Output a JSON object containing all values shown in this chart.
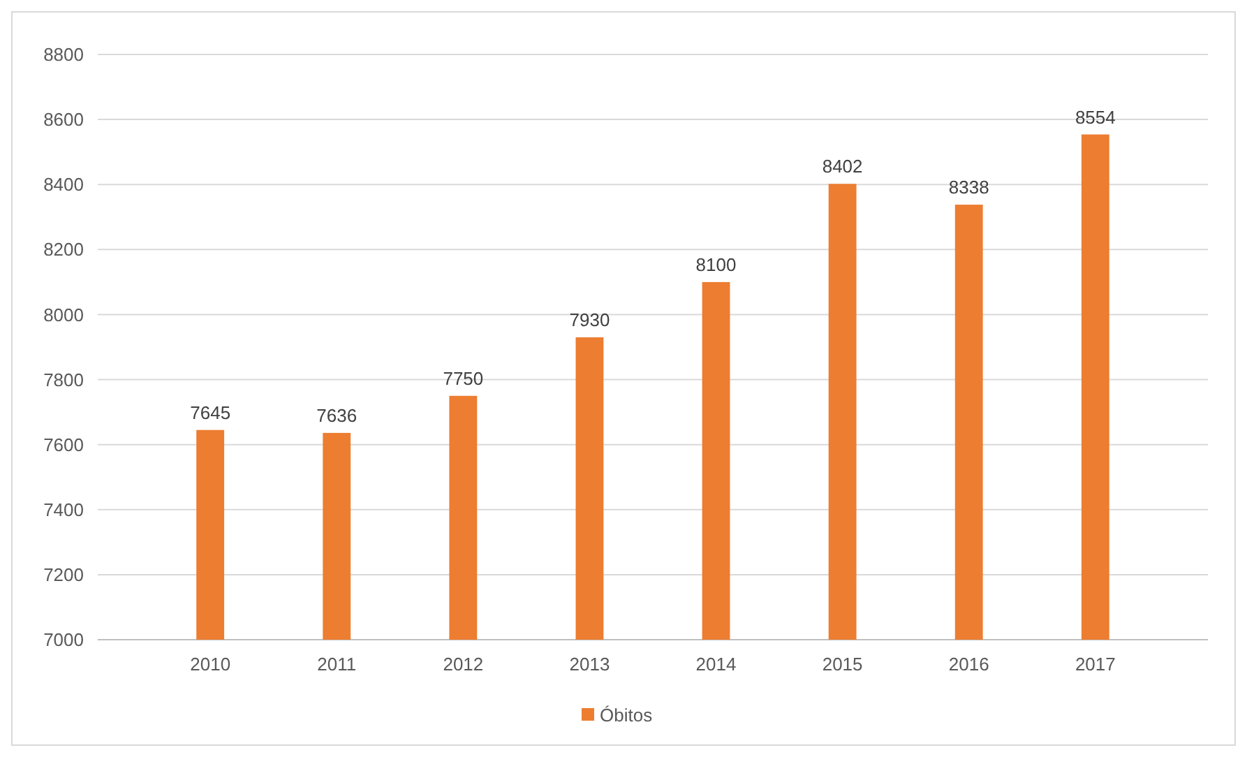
{
  "chart_data": {
    "type": "bar",
    "categories": [
      "2010",
      "2011",
      "2012",
      "2013",
      "2014",
      "2015",
      "2016",
      "2017"
    ],
    "series": [
      {
        "name": "Óbitos",
        "color": "#ed7d31",
        "values": [
          7645,
          7636,
          7750,
          7930,
          8100,
          8402,
          8338,
          8554
        ]
      }
    ],
    "ylim": [
      7000,
      8800
    ],
    "yticks": [
      7000,
      7200,
      7400,
      7600,
      7800,
      8000,
      8200,
      8400,
      8600,
      8800
    ],
    "grid": "y",
    "legend": "bottom",
    "data_labels": true
  }
}
